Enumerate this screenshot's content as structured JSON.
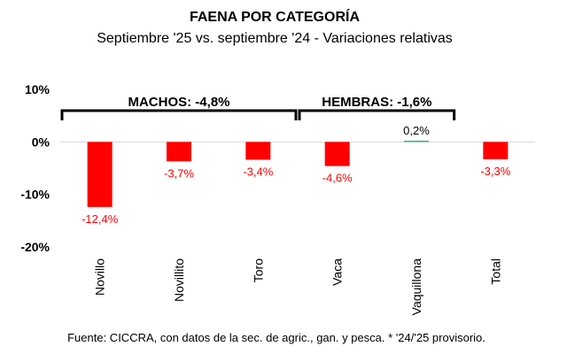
{
  "chart_data": {
    "type": "bar",
    "title": "FAENA POR CATEGORÍA",
    "subtitle": "Septiembre '25 vs. septiembre '24 - Variaciones relativas",
    "categories": [
      "Novillo",
      "Novillito",
      "Toro",
      "Vaca",
      "Vaquillona",
      "Total"
    ],
    "values": [
      -12.4,
      -3.7,
      -3.4,
      -4.6,
      0.2,
      -3.3
    ],
    "value_labels": [
      "-12,4%",
      "-3,7%",
      "-3,4%",
      "-4,6%",
      "0,2%",
      "-3,3%"
    ],
    "y_ticks": [
      10,
      0,
      -10,
      -20
    ],
    "y_tick_labels": [
      "10%",
      "0%",
      "-10%",
      "-20%"
    ],
    "ylim": [
      -20,
      10
    ],
    "xlabel": "",
    "ylabel": "",
    "grid": false,
    "groups": [
      {
        "label": "MACHOS: -4,8%",
        "start": 0,
        "end": 2
      },
      {
        "label": "HEMBRAS: -1,6%",
        "start": 3,
        "end": 4
      }
    ],
    "colors": {
      "negative": "#ff0000",
      "positive": "#00b050",
      "negative_label": "#ff0000",
      "positive_label": "#000000",
      "axis": "#d9d9d9",
      "text": "#000000"
    },
    "source": "Fuente: CICCRA, con datos de la sec. de agric., gan. y pesca. * '24/'25 provisorio."
  }
}
